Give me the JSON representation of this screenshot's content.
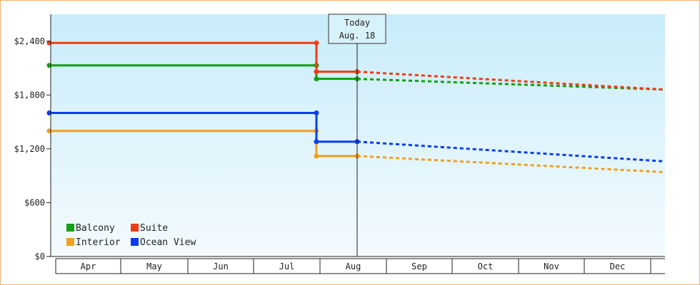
{
  "chart_data": {
    "type": "line",
    "title": "",
    "xlabel": "",
    "ylabel": "",
    "x_axis_months": [
      "Apr",
      "May",
      "Jun",
      "Jul",
      "Aug",
      "Sep",
      "Oct",
      "Nov",
      "Dec"
    ],
    "y_ticks": [
      "$0",
      "$600",
      "$1,200",
      "$1,800",
      "$2,400"
    ],
    "ylim": [
      0,
      2400
    ],
    "today_marker": {
      "label_line1": "Today",
      "label_line2": "Aug. 18",
      "x": "Aug. 18"
    },
    "legend_placement": "bottom-left",
    "series": [
      {
        "name": "Balcony",
        "color": "#12a012",
        "points": [
          {
            "x": "Apr 1",
            "y": 2130,
            "style": "solid"
          },
          {
            "x": "Jul 31",
            "y": 2130,
            "style": "solid"
          },
          {
            "x": "Jul 31",
            "y": 1980,
            "style": "solid"
          },
          {
            "x": "Aug 18",
            "y": 1980,
            "style": "dashed"
          },
          {
            "x": "Dec 31",
            "y": 1860,
            "style": "dashed"
          }
        ]
      },
      {
        "name": "Suite",
        "color": "#f03c14",
        "points": [
          {
            "x": "Apr 1",
            "y": 2380,
            "style": "solid"
          },
          {
            "x": "Jul 31",
            "y": 2380,
            "style": "solid"
          },
          {
            "x": "Jul 31",
            "y": 2060,
            "style": "solid"
          },
          {
            "x": "Aug 18",
            "y": 2060,
            "style": "dashed"
          },
          {
            "x": "Dec 31",
            "y": 1860,
            "style": "dashed"
          }
        ]
      },
      {
        "name": "Interior",
        "color": "#f0a01e",
        "points": [
          {
            "x": "Apr 1",
            "y": 1400,
            "style": "solid"
          },
          {
            "x": "Jul 31",
            "y": 1400,
            "style": "solid"
          },
          {
            "x": "Jul 31",
            "y": 1120,
            "style": "solid"
          },
          {
            "x": "Aug 18",
            "y": 1120,
            "style": "dashed"
          },
          {
            "x": "Dec 31",
            "y": 940,
            "style": "dashed"
          }
        ]
      },
      {
        "name": "Ocean View",
        "color": "#0a3cf0",
        "points": [
          {
            "x": "Apr 1",
            "y": 1600,
            "style": "solid"
          },
          {
            "x": "Jul 31",
            "y": 1600,
            "style": "solid"
          },
          {
            "x": "Jul 31",
            "y": 1280,
            "style": "solid"
          },
          {
            "x": "Aug 18",
            "y": 1280,
            "style": "dashed"
          },
          {
            "x": "Dec 31",
            "y": 1060,
            "style": "dashed"
          }
        ]
      }
    ],
    "legend": [
      {
        "name": "Balcony",
        "color": "#12a012"
      },
      {
        "name": "Suite",
        "color": "#f03c14"
      },
      {
        "name": "Interior",
        "color": "#f0a01e"
      },
      {
        "name": "Ocean View",
        "color": "#0a3cf0"
      }
    ],
    "colors": {
      "background_top": "#c8ecfa",
      "background_bottom": "#f4fbfe",
      "frame_border": "#f0b070",
      "axis": "#222222"
    }
  }
}
